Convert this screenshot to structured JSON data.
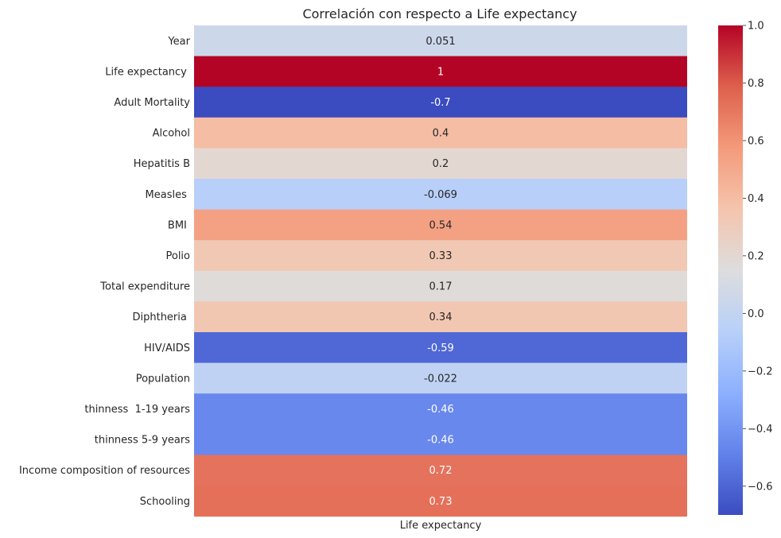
{
  "chart_data": {
    "type": "heatmap",
    "title": "Correlación con respecto a Life expectancy",
    "xlabel": "",
    "ylabel": "",
    "columns": [
      "Life expectancy"
    ],
    "rows": [
      "Year",
      "Life expectancy ",
      "Adult Mortality",
      "Alcohol",
      "Hepatitis B",
      "Measles ",
      " BMI ",
      "Polio",
      "Total expenditure",
      "Diphtheria ",
      " HIV/AIDS",
      "Population",
      " thinness  1-19 years",
      " thinness 5-9 years",
      "Income composition of resources",
      "Schooling"
    ],
    "values": [
      0.051,
      1,
      -0.7,
      0.4,
      0.2,
      -0.069,
      0.54,
      0.33,
      0.17,
      0.34,
      -0.59,
      -0.022,
      -0.46,
      -0.46,
      0.72,
      0.73
    ],
    "annotations": [
      "0.051",
      "1",
      "-0.7",
      "0.4",
      "0.2",
      "-0.069",
      "0.54",
      "0.33",
      "0.17",
      "0.34",
      "-0.59",
      "-0.022",
      "-0.46",
      "-0.46",
      "0.72",
      "0.73"
    ],
    "colormap": "coolwarm",
    "vmin": -0.7,
    "vmax": 1.0,
    "colorbar_ticks": [
      1.0,
      0.8,
      0.6,
      0.4,
      0.2,
      0.0,
      -0.2,
      -0.4,
      -0.6
    ],
    "colorbar_tick_labels": [
      "1.0",
      "0.8",
      "0.6",
      "0.4",
      "0.2",
      "0.0",
      "−0.2",
      "−0.4",
      "−0.6"
    ],
    "grid": false
  }
}
